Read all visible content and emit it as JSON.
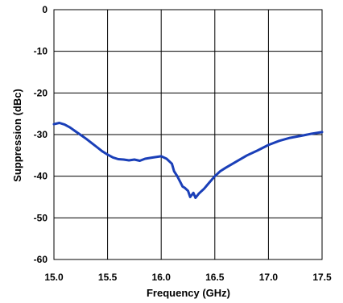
{
  "chart_data": {
    "type": "line",
    "title": "",
    "xlabel": "Frequency (GHz)",
    "ylabel": "Suppression (dBc)",
    "xlim": [
      15.0,
      17.5
    ],
    "ylim": [
      -60,
      0
    ],
    "x_ticks": [
      "15.0",
      "15.5",
      "16.0",
      "16.5",
      "17.0",
      "17.5"
    ],
    "y_ticks": [
      "0",
      "-10",
      "-20",
      "-30",
      "-40",
      "-50",
      "-60"
    ],
    "grid": true,
    "legend": "none",
    "series": [
      {
        "color": "#1a3fb8",
        "x": [
          15.0,
          15.05,
          15.1,
          15.15,
          15.2,
          15.25,
          15.3,
          15.35,
          15.4,
          15.45,
          15.5,
          15.55,
          15.6,
          15.65,
          15.7,
          15.75,
          15.8,
          15.85,
          15.9,
          15.95,
          16.0,
          16.05,
          16.1,
          16.12,
          16.15,
          16.18,
          16.2,
          16.22,
          16.25,
          16.27,
          16.3,
          16.32,
          16.35,
          16.4,
          16.45,
          16.5,
          16.55,
          16.6,
          16.7,
          16.8,
          16.9,
          17.0,
          17.1,
          17.2,
          17.3,
          17.4,
          17.5
        ],
        "y": [
          -27.5,
          -27.2,
          -27.6,
          -28.3,
          -29.2,
          -30.1,
          -31.0,
          -32.0,
          -33.0,
          -34.0,
          -34.8,
          -35.5,
          -35.9,
          -36.0,
          -36.2,
          -36.0,
          -36.3,
          -35.8,
          -35.6,
          -35.4,
          -35.2,
          -35.8,
          -37.0,
          -38.8,
          -40.0,
          -41.5,
          -42.5,
          -42.8,
          -43.5,
          -45.0,
          -44.0,
          -45.2,
          -44.2,
          -43.0,
          -41.5,
          -40.0,
          -38.8,
          -38.0,
          -36.5,
          -35.0,
          -33.8,
          -32.5,
          -31.5,
          -30.8,
          -30.3,
          -29.8,
          -29.4
        ]
      }
    ]
  }
}
